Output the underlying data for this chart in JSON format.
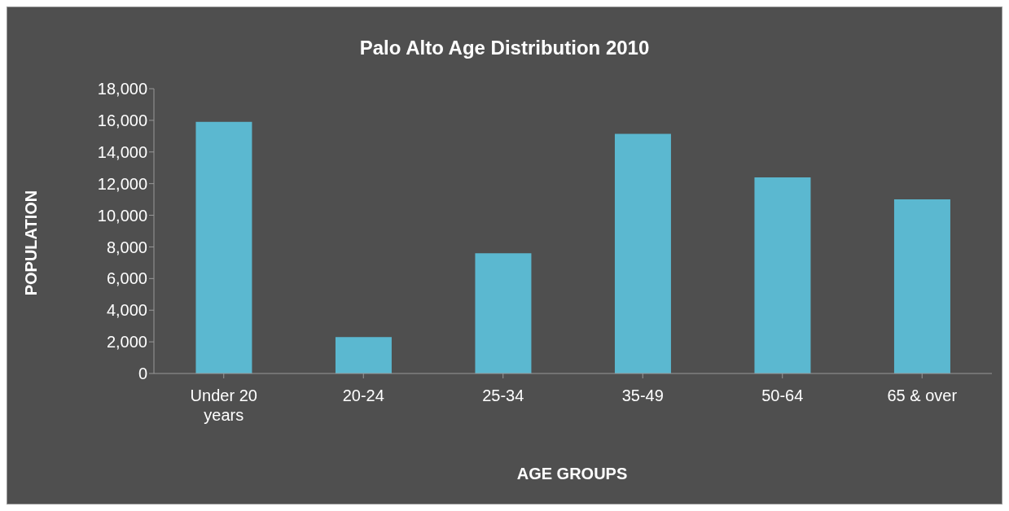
{
  "chart_data": {
    "type": "bar",
    "title": "Palo Alto Age Distribution 2010",
    "xlabel": "AGE GROUPS",
    "ylabel": "POPULATION",
    "categories": [
      "Under 20 years",
      "20-24",
      "25-34",
      "35-49",
      "50-64",
      "65 & over"
    ],
    "values": [
      15900,
      2300,
      7600,
      15150,
      12400,
      11000
    ],
    "color": "#5bb8d0",
    "ylim": [
      0,
      18000
    ],
    "yticks": [
      {
        "value": 0,
        "label": "0"
      },
      {
        "value": 2000,
        "label": "2,000"
      },
      {
        "value": 4000,
        "label": "4,000"
      },
      {
        "value": 6000,
        "label": "6,000"
      },
      {
        "value": 8000,
        "label": "8,000"
      },
      {
        "value": 10000,
        "label": "10,000"
      },
      {
        "value": 12000,
        "label": "12,000"
      },
      {
        "value": 14000,
        "label": "14,000"
      },
      {
        "value": 16000,
        "label": "16,000"
      },
      {
        "value": 18000,
        "label": "18,000"
      }
    ],
    "grid": false,
    "legend": false
  }
}
